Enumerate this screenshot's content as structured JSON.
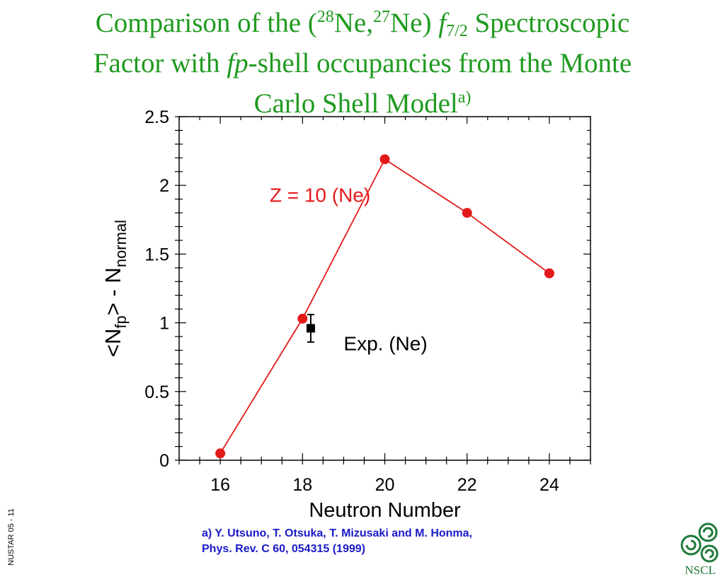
{
  "title": {
    "line1_a": "Comparison of the (",
    "sup1": "28",
    "line1_b": "Ne,",
    "sup2": "27",
    "line1_c": "Ne) ",
    "f": "f",
    "sub": "7/2",
    "line1_d": " Spectroscopic",
    "line2_a": "Factor with ",
    "fp": "fp",
    "line2_b": "-shell occupancies from the Monte",
    "line3": "Carlo Shell Model",
    "note_mark": "a)"
  },
  "chart_data": {
    "type": "line",
    "xlabel": "Neutron Number",
    "ylabel_parts": [
      "<N",
      "fp",
      "> - N",
      "normal"
    ],
    "xlim": [
      15,
      25
    ],
    "ylim": [
      0,
      2.5
    ],
    "x_ticks": [
      16,
      18,
      20,
      22,
      24
    ],
    "y_ticks": [
      0,
      0.5,
      1,
      1.5,
      2,
      2.5
    ],
    "y_tick_labels": [
      "0",
      "0.5",
      "1",
      "1.5",
      "2",
      "2.5"
    ],
    "series": [
      {
        "name": "Z = 10  (Ne)",
        "color": "#e41a1a",
        "points": [
          {
            "x": 16,
            "y": 0.05
          },
          {
            "x": 18,
            "y": 1.03
          },
          {
            "x": 20,
            "y": 2.19
          },
          {
            "x": 22,
            "y": 1.8
          },
          {
            "x": 24,
            "y": 1.36
          }
        ]
      },
      {
        "name": "Exp. (Ne)",
        "color": "#000000",
        "points": [
          {
            "x": 18.2,
            "y": 0.96,
            "err": 0.1
          }
        ]
      }
    ],
    "annotations": [
      {
        "text": "Z = 10  (Ne)",
        "color": "#e41a1a",
        "at_x": 17.2,
        "at_y": 1.88
      },
      {
        "text": "Exp. (Ne)",
        "color": "#000000",
        "at_x": 19.0,
        "at_y": 0.8
      }
    ]
  },
  "reference": {
    "line1": "a) Y. Utsuno, T. Otsuka, T. Mizusaki and M. Honma,",
    "line2": "Phys. Rev. C 60, 054315 (1999)"
  },
  "slide_id": "NUSTAR 05 - 11",
  "logo": {
    "text": "NSCL",
    "icon": "nscl-swirl-logo",
    "color": "#1e7a3a"
  }
}
